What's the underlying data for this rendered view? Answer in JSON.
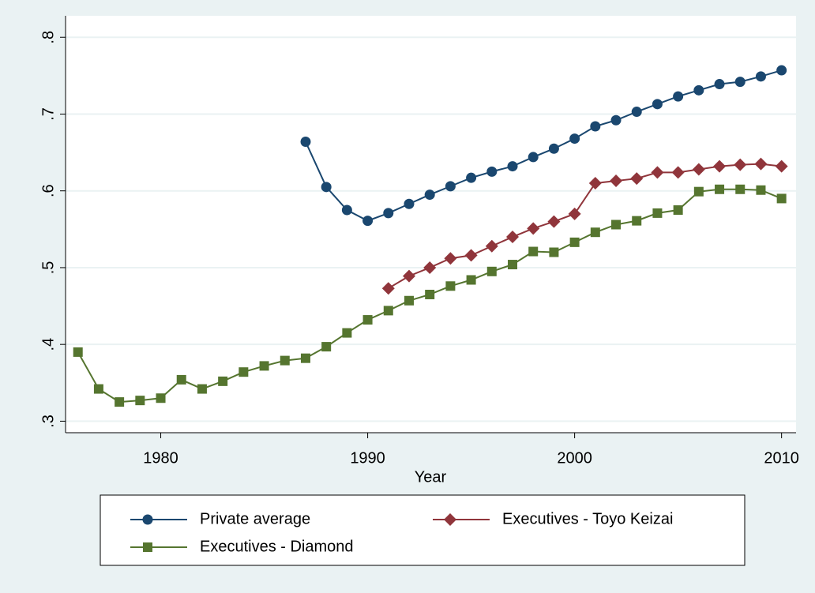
{
  "chart_data": {
    "type": "line",
    "x_label": "Year",
    "x": [
      1976,
      1977,
      1978,
      1979,
      1980,
      1981,
      1982,
      1983,
      1984,
      1985,
      1986,
      1987,
      1988,
      1989,
      1990,
      1991,
      1992,
      1993,
      1994,
      1995,
      1996,
      1997,
      1998,
      1999,
      2000,
      2001,
      2002,
      2003,
      2004,
      2005,
      2006,
      2007,
      2008,
      2009,
      2010
    ],
    "series": [
      {
        "name": "Private average",
        "color": "#1a476f",
        "marker": "circle",
        "values": [
          null,
          null,
          null,
          null,
          null,
          null,
          null,
          null,
          null,
          null,
          null,
          0.664,
          0.605,
          0.575,
          0.561,
          0.571,
          0.583,
          0.595,
          0.606,
          0.617,
          0.625,
          0.632,
          0.644,
          0.655,
          0.668,
          0.684,
          0.692,
          0.703,
          0.713,
          0.723,
          0.731,
          0.739,
          0.742,
          0.749,
          0.757
        ]
      },
      {
        "name": "Executives - Toyo Keizai",
        "color": "#90353b",
        "marker": "diamond",
        "values": [
          null,
          null,
          null,
          null,
          null,
          null,
          null,
          null,
          null,
          null,
          null,
          null,
          null,
          null,
          null,
          0.473,
          0.489,
          0.5,
          0.512,
          0.516,
          0.528,
          0.54,
          0.551,
          0.56,
          0.57,
          0.61,
          0.613,
          0.616,
          0.624,
          0.624,
          0.628,
          0.632,
          0.634,
          0.635,
          0.632
        ]
      },
      {
        "name": "Executives - Diamond",
        "color": "#55752f",
        "marker": "square",
        "values": [
          0.39,
          0.342,
          0.325,
          0.327,
          0.33,
          0.354,
          0.342,
          0.352,
          0.364,
          0.372,
          0.379,
          0.382,
          0.397,
          0.415,
          0.432,
          0.444,
          0.457,
          0.465,
          0.476,
          0.484,
          0.495,
          0.504,
          0.521,
          0.52,
          0.533,
          0.546,
          0.556,
          0.561,
          0.571,
          0.575,
          0.599,
          0.602,
          0.602,
          0.601,
          0.59
        ]
      }
    ],
    "xlim": [
      1975.4,
      2010.7
    ],
    "ylim": [
      0.285,
      0.828
    ],
    "xticks": [
      1980,
      1990,
      2000,
      2010
    ],
    "yticks": [
      {
        "value": 0.3,
        "label": ".3"
      },
      {
        "value": 0.4,
        "label": ".4"
      },
      {
        "value": 0.5,
        "label": ".5"
      },
      {
        "value": 0.6,
        "label": ".6"
      },
      {
        "value": 0.7,
        "label": ".7"
      },
      {
        "value": 0.8,
        "label": ".8"
      }
    ],
    "grid": true,
    "legend": "bottom"
  }
}
